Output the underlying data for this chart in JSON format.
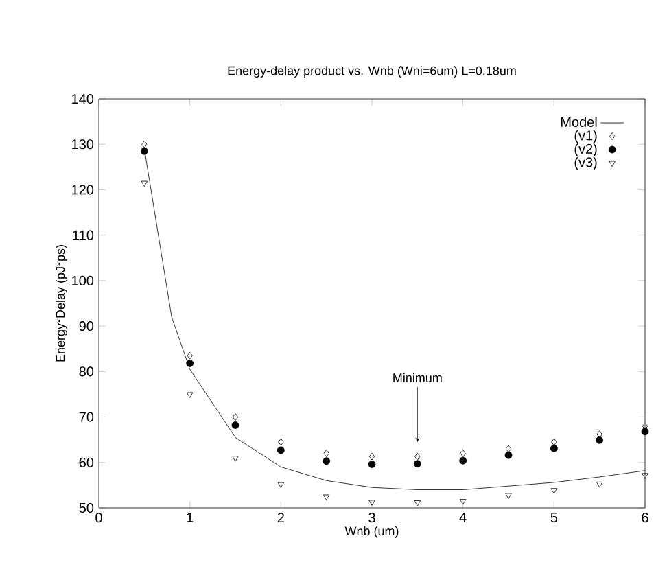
{
  "chart_data": {
    "type": "scatter",
    "title": "Energy-delay product vs. Wnb (Wni=6um) L=0.18um",
    "xlabel": "Wnb (um)",
    "ylabel": "Energy*Delay (pJ*ps)",
    "xlim": [
      0,
      6
    ],
    "ylim": [
      50,
      140
    ],
    "xticks": [
      0,
      1,
      2,
      3,
      4,
      5,
      6
    ],
    "yticks": [
      50,
      60,
      70,
      80,
      90,
      100,
      110,
      120,
      130,
      140
    ],
    "legend": "top right",
    "grid": false,
    "series": [
      {
        "name": "Model",
        "type": "line",
        "color": "#000000",
        "marker": "none",
        "line_style": "solid",
        "x": [
          0.5,
          0.8,
          1,
          1.5,
          2,
          2.5,
          3,
          3.5,
          4,
          4.5,
          5,
          5.5,
          6
        ],
        "values": [
          129,
          92,
          80.5,
          65.5,
          59,
          56,
          54.5,
          54,
          54,
          54.8,
          55.6,
          56.8,
          58.2
        ]
      },
      {
        "name": "(v1)",
        "type": "scatter",
        "color": "#000000",
        "marker": "diamond",
        "x": [
          0.5,
          1,
          1.5,
          2,
          2.5,
          3,
          3.5,
          4,
          4.5,
          5,
          5.5,
          6
        ],
        "values": [
          130,
          83.5,
          70,
          64.5,
          62,
          61.3,
          61.3,
          62,
          63,
          64.5,
          66.2,
          68
        ]
      },
      {
        "name": "(v2)",
        "type": "scatter",
        "color": "#000000",
        "marker": "circle",
        "x": [
          0.5,
          1,
          1.5,
          2,
          2.5,
          3,
          3.5,
          4,
          4.5,
          5,
          5.5,
          6
        ],
        "values": [
          128.5,
          81.8,
          68.2,
          62.7,
          60.3,
          59.6,
          59.7,
          60.4,
          61.6,
          63.1,
          64.9,
          66.8
        ]
      },
      {
        "name": "(v3)",
        "type": "scatter",
        "color": "#000000",
        "marker": "triangle",
        "x": [
          0.5,
          1,
          1.5,
          2,
          2.5,
          3,
          3.5,
          4,
          4.5,
          5,
          5.5,
          6
        ],
        "values": [
          121.5,
          75,
          61,
          55.2,
          52.5,
          51.3,
          51.2,
          51.5,
          52.8,
          53.9,
          55.3,
          57.2
        ]
      }
    ],
    "annotations": [
      {
        "text": "Minimum",
        "x": 3.5,
        "y": 64.5
      }
    ]
  }
}
